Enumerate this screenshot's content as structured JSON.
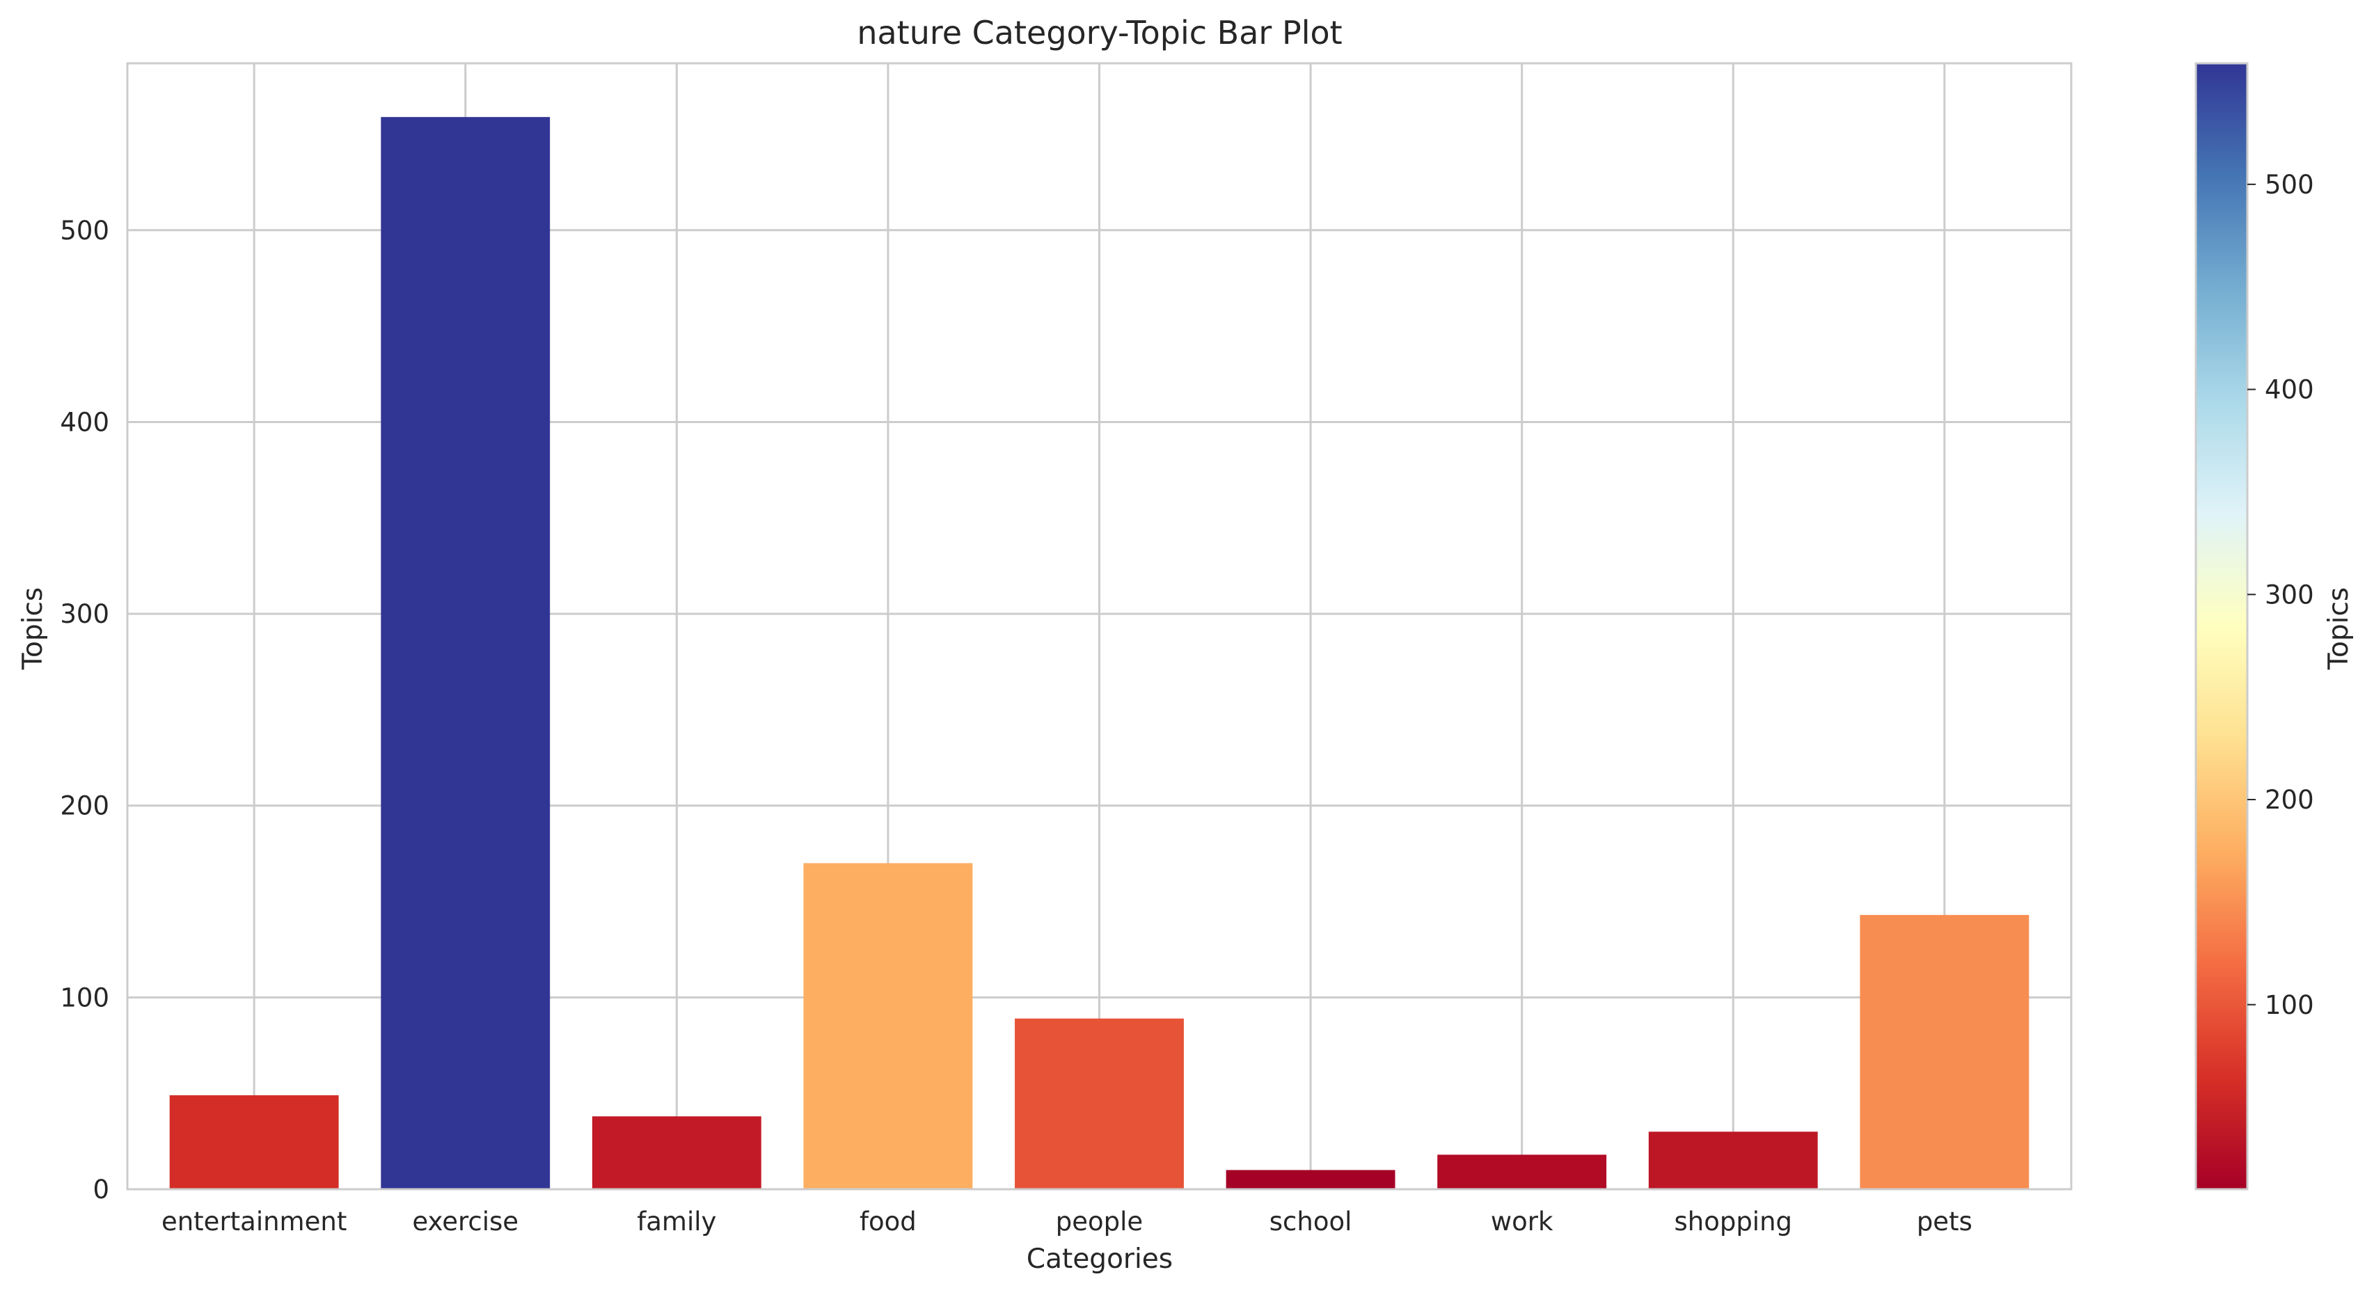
{
  "chart_data": {
    "type": "bar",
    "title": "nature Category-Topic Bar Plot",
    "xlabel": "Categories",
    "ylabel": "Topics",
    "categories": [
      "entertainment",
      "exercise",
      "family",
      "food",
      "people",
      "school",
      "work",
      "shopping",
      "pets"
    ],
    "values": [
      49,
      559,
      38,
      170,
      89,
      10,
      18,
      30,
      143
    ],
    "ylim": [
      0,
      587
    ],
    "yticks": [
      0,
      100,
      200,
      300,
      400,
      500
    ],
    "grid": true,
    "colorbar": {
      "label": "Topics",
      "colormap": "RdYlBu",
      "range": [
        10,
        559
      ],
      "ticks": [
        100,
        200,
        300,
        400,
        500
      ]
    },
    "bar_colors": [
      "#d42d27",
      "#313695",
      "#c21b27",
      "#fdae61",
      "#e75337",
      "#a50026",
      "#b10b26",
      "#bd1726",
      "#f88d52"
    ]
  }
}
